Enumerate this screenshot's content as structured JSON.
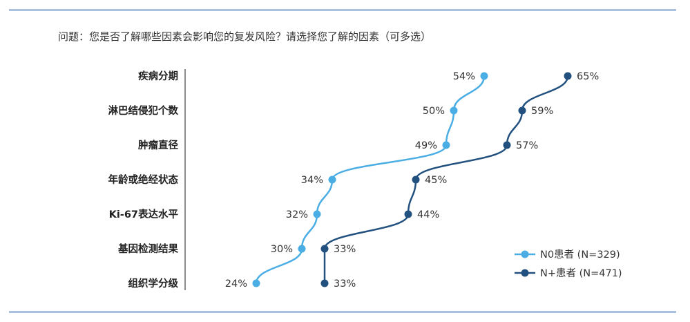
{
  "question": "问题：您是否了解哪些因素会影响您的复发风险？请选择您了解的因素（可多选）",
  "chart_data": {
    "type": "line",
    "categories": [
      "疾病分期",
      "淋巴结侵犯个数",
      "肿瘤直径",
      "年龄或绝经状态",
      "Ki-67表达水平",
      "基因检测结果",
      "组织学分级"
    ],
    "series": [
      {
        "name": "N0患者 (N=329)",
        "values": [
          54,
          50,
          49,
          34,
          32,
          30,
          24
        ],
        "labels": [
          "54%",
          "50%",
          "49%",
          "34%",
          "32%",
          "30%",
          "24%"
        ],
        "color": "#4aaee4",
        "label_side": "left"
      },
      {
        "name": "N+患者 (N=471)",
        "values": [
          65,
          59,
          57,
          45,
          44,
          33,
          33
        ],
        "labels": [
          "65%",
          "59%",
          "57%",
          "45%",
          "44%",
          "33%",
          "33%"
        ],
        "color": "#22517f",
        "label_side": "right"
      }
    ],
    "value_axis": "horizontal",
    "legend_position": "bottom-right",
    "grid": false
  }
}
